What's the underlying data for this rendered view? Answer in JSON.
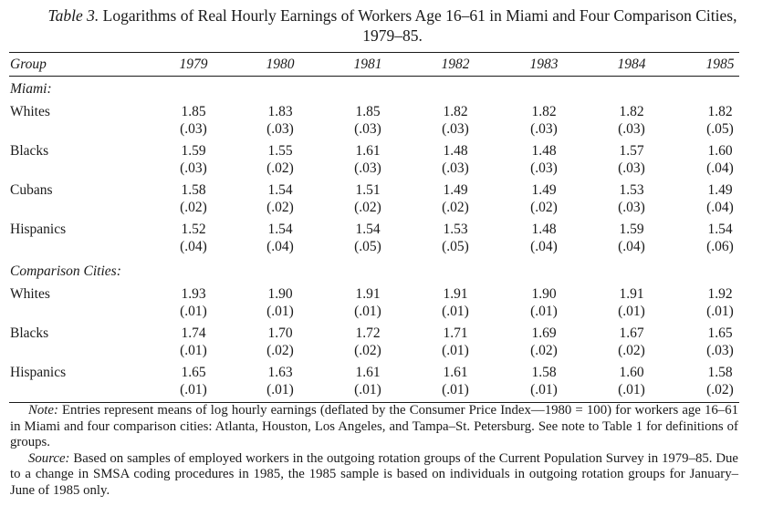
{
  "caption": {
    "label": "Table 3.",
    "title": "Logarithms of Real Hourly Earnings of Workers Age 16–61 in Miami and Four Comparison Cities, 1979–85."
  },
  "header": {
    "group_label": "Group",
    "years": [
      "1979",
      "1980",
      "1981",
      "1982",
      "1983",
      "1984",
      "1985"
    ]
  },
  "sections": [
    {
      "title": "Miami:",
      "rows": [
        {
          "group": "Whites",
          "means": [
            "1.85",
            "1.83",
            "1.85",
            "1.82",
            "1.82",
            "1.82",
            "1.82"
          ],
          "ses": [
            "(.03)",
            "(.03)",
            "(.03)",
            "(.03)",
            "(.03)",
            "(.03)",
            "(.05)"
          ]
        },
        {
          "group": "Blacks",
          "means": [
            "1.59",
            "1.55",
            "1.61",
            "1.48",
            "1.48",
            "1.57",
            "1.60"
          ],
          "ses": [
            "(.03)",
            "(.02)",
            "(.03)",
            "(.03)",
            "(.03)",
            "(.03)",
            "(.04)"
          ]
        },
        {
          "group": "Cubans",
          "means": [
            "1.58",
            "1.54",
            "1.51",
            "1.49",
            "1.49",
            "1.53",
            "1.49"
          ],
          "ses": [
            "(.02)",
            "(.02)",
            "(.02)",
            "(.02)",
            "(.02)",
            "(.03)",
            "(.04)"
          ]
        },
        {
          "group": "Hispanics",
          "means": [
            "1.52",
            "1.54",
            "1.54",
            "1.53",
            "1.48",
            "1.59",
            "1.54"
          ],
          "ses": [
            "(.04)",
            "(.04)",
            "(.05)",
            "(.05)",
            "(.04)",
            "(.04)",
            "(.06)"
          ]
        }
      ]
    },
    {
      "title": "Comparison Cities:",
      "rows": [
        {
          "group": "Whites",
          "means": [
            "1.93",
            "1.90",
            "1.91",
            "1.91",
            "1.90",
            "1.91",
            "1.92"
          ],
          "ses": [
            "(.01)",
            "(.01)",
            "(.01)",
            "(.01)",
            "(.01)",
            "(.01)",
            "(.01)"
          ]
        },
        {
          "group": "Blacks",
          "means": [
            "1.74",
            "1.70",
            "1.72",
            "1.71",
            "1.69",
            "1.67",
            "1.65"
          ],
          "ses": [
            "(.01)",
            "(.02)",
            "(.02)",
            "(.01)",
            "(.02)",
            "(.02)",
            "(.03)"
          ]
        },
        {
          "group": "Hispanics",
          "means": [
            "1.65",
            "1.63",
            "1.61",
            "1.61",
            "1.58",
            "1.60",
            "1.58"
          ],
          "ses": [
            "(.01)",
            "(.01)",
            "(.01)",
            "(.01)",
            "(.01)",
            "(.01)",
            "(.02)"
          ]
        }
      ]
    }
  ],
  "notes": {
    "note_label": "Note:",
    "note_text": "Entries represent means of log hourly earnings (deflated by the Consumer Price Index—1980 = 100) for workers age 16–61 in Miami and four comparison cities: Atlanta, Houston, Los Angeles, and Tampa–St. Petersburg. See note to Table 1 for definitions of groups.",
    "source_label": "Source:",
    "source_text": "Based on samples of employed workers in the outgoing rotation groups of the Current Population Survey in 1979–85. Due to a change in SMSA coding procedures in 1985, the 1985 sample is based on individuals in outgoing rotation groups for January–June of 1985 only."
  }
}
